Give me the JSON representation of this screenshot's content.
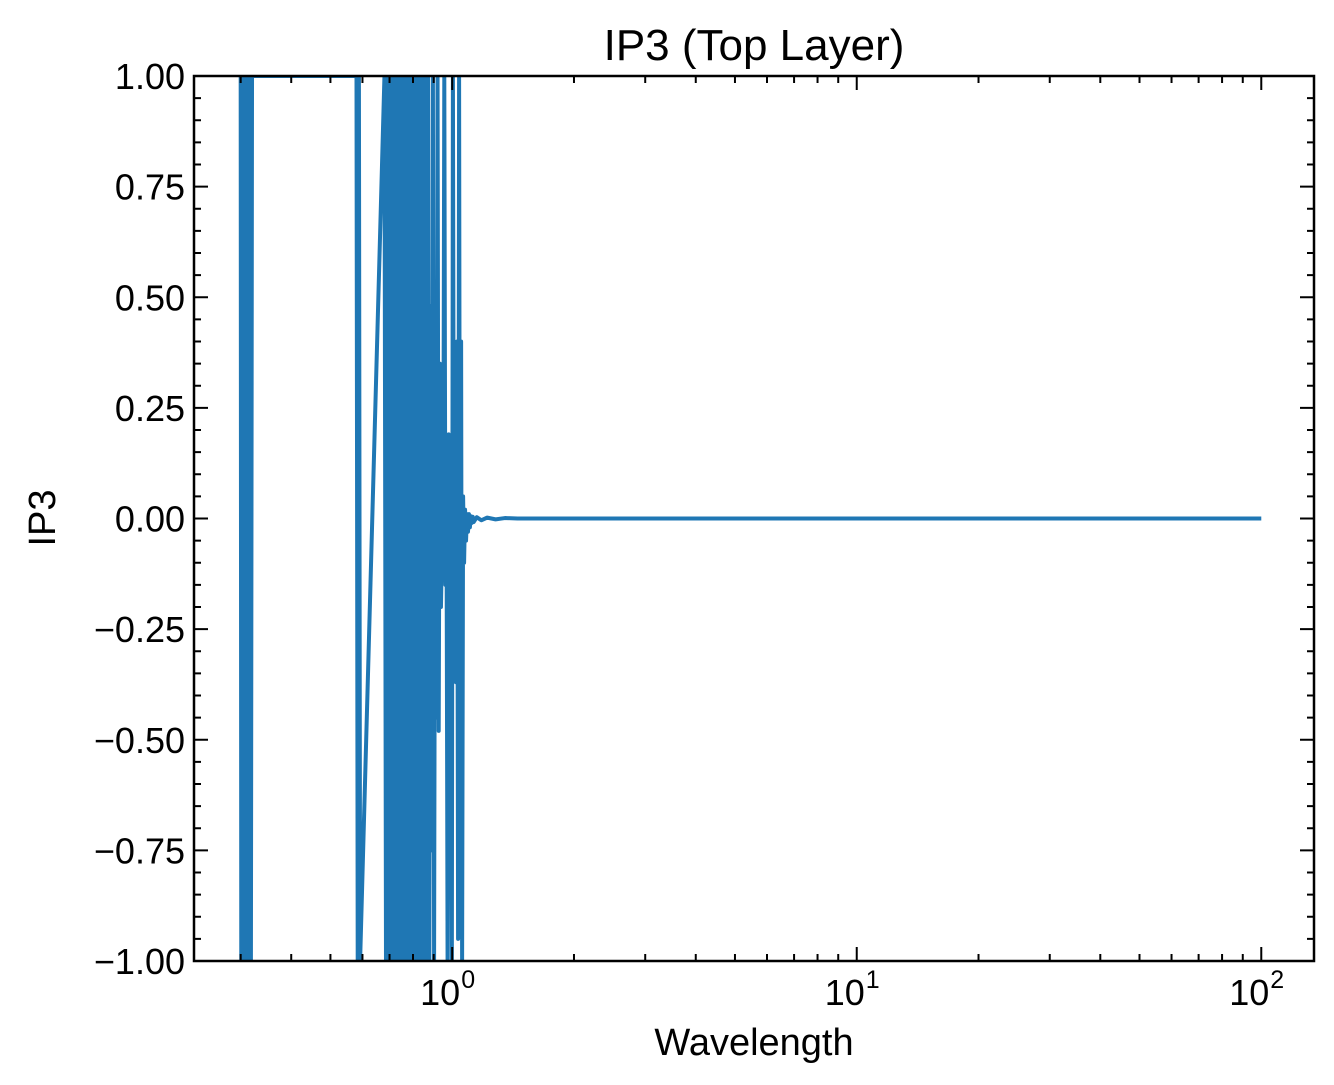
{
  "chart_data": {
    "type": "line",
    "title": "IP3 (Top Layer)",
    "xlabel": "Wavelength",
    "ylabel": "IP3",
    "xscale": "log",
    "xlim": [
      0.23,
      135
    ],
    "ylim": [
      -1.0,
      1.0
    ],
    "yticks": [
      -1.0,
      -0.75,
      -0.5,
      -0.25,
      0.0,
      0.25,
      0.5,
      0.75,
      1.0
    ],
    "ytick_labels": [
      "−1.00",
      "−0.75",
      "−0.50",
      "−0.25",
      "0.00",
      "0.25",
      "0.50",
      "0.75",
      "1.00"
    ],
    "xticks": [
      {
        "base": "10",
        "exp": "0",
        "value": 1
      },
      {
        "base": "10",
        "exp": "1",
        "value": 10
      },
      {
        "base": "10",
        "exp": "2",
        "value": 100
      }
    ],
    "grid": false,
    "ticks_direction": "in",
    "series": [
      {
        "color": "#1f77b4",
        "x": [
          0.3,
          0.301,
          0.302,
          0.304,
          0.306,
          0.308,
          0.31,
          0.312,
          0.314,
          0.316,
          0.318,
          0.32,
          0.58,
          0.584,
          0.588,
          0.592,
          0.68,
          0.686,
          0.692,
          0.698,
          0.704,
          0.71,
          0.716,
          0.722,
          0.728,
          0.734,
          0.74,
          0.746,
          0.752,
          0.758,
          0.764,
          0.77,
          0.776,
          0.782,
          0.788,
          0.794,
          0.8,
          0.806,
          0.812,
          0.818,
          0.824,
          0.83,
          0.836,
          0.842,
          0.848,
          0.854,
          0.86,
          0.866,
          0.872,
          0.878,
          0.884,
          0.89,
          0.896,
          0.902,
          0.908,
          0.914,
          0.92,
          0.926,
          0.932,
          0.938,
          0.944,
          0.95,
          0.956,
          0.962,
          0.968,
          0.974,
          0.98,
          0.986,
          0.992,
          0.998,
          1.004,
          1.01,
          1.016,
          1.022,
          1.028,
          1.034,
          1.04,
          1.046,
          1.052,
          1.058,
          1.064,
          1.07,
          1.076,
          1.082,
          1.088,
          1.094,
          1.1,
          1.106,
          1.112,
          1.118,
          1.124,
          1.13,
          1.15,
          1.18,
          1.22,
          1.28,
          1.35,
          1.45,
          1.6,
          2,
          3,
          5,
          10,
          20,
          50,
          100
        ],
        "y": [
          1.0,
          -1.0,
          -0.73,
          1.0,
          -1.0,
          1.0,
          -1.0,
          1.0,
          -1.0,
          1.0,
          -1.0,
          1.0,
          1.0,
          -1.0,
          1.0,
          -1.0,
          1.0,
          -1.0,
          1.0,
          -1.0,
          1.0,
          -1.0,
          1.0,
          -1.0,
          1.0,
          -1.0,
          1.0,
          -1.0,
          1.0,
          -1.0,
          1.0,
          -1.0,
          1.0,
          -1.0,
          1.0,
          -1.0,
          1.0,
          -1.0,
          1.0,
          -1.0,
          1.0,
          -1.0,
          1.0,
          -1.0,
          1.0,
          -1.0,
          1.0,
          -1.0,
          1.0,
          -1.0,
          0.48,
          -0.75,
          1.0,
          -1.0,
          0.32,
          -0.45,
          1.0,
          -0.48,
          0.35,
          -0.2,
          -0.05,
          -0.1,
          1.0,
          -0.15,
          0.05,
          -1.0,
          0.19,
          -0.85,
          0.1,
          -1.0,
          1.0,
          -0.2,
          0.17,
          -0.37,
          0.4,
          -0.95,
          1.0,
          -0.62,
          0.4,
          -1.0,
          0.05,
          -0.1,
          0.02,
          -0.05,
          0.01,
          -0.03,
          0.01,
          -0.02,
          0.005,
          -0.01,
          0.004,
          -0.008,
          0.003,
          -0.004,
          0.002,
          -0.002,
          0.001,
          0.0,
          0.0,
          0.0,
          0.0,
          0.0,
          0.0,
          0.0,
          0.0,
          0.0
        ]
      }
    ]
  }
}
